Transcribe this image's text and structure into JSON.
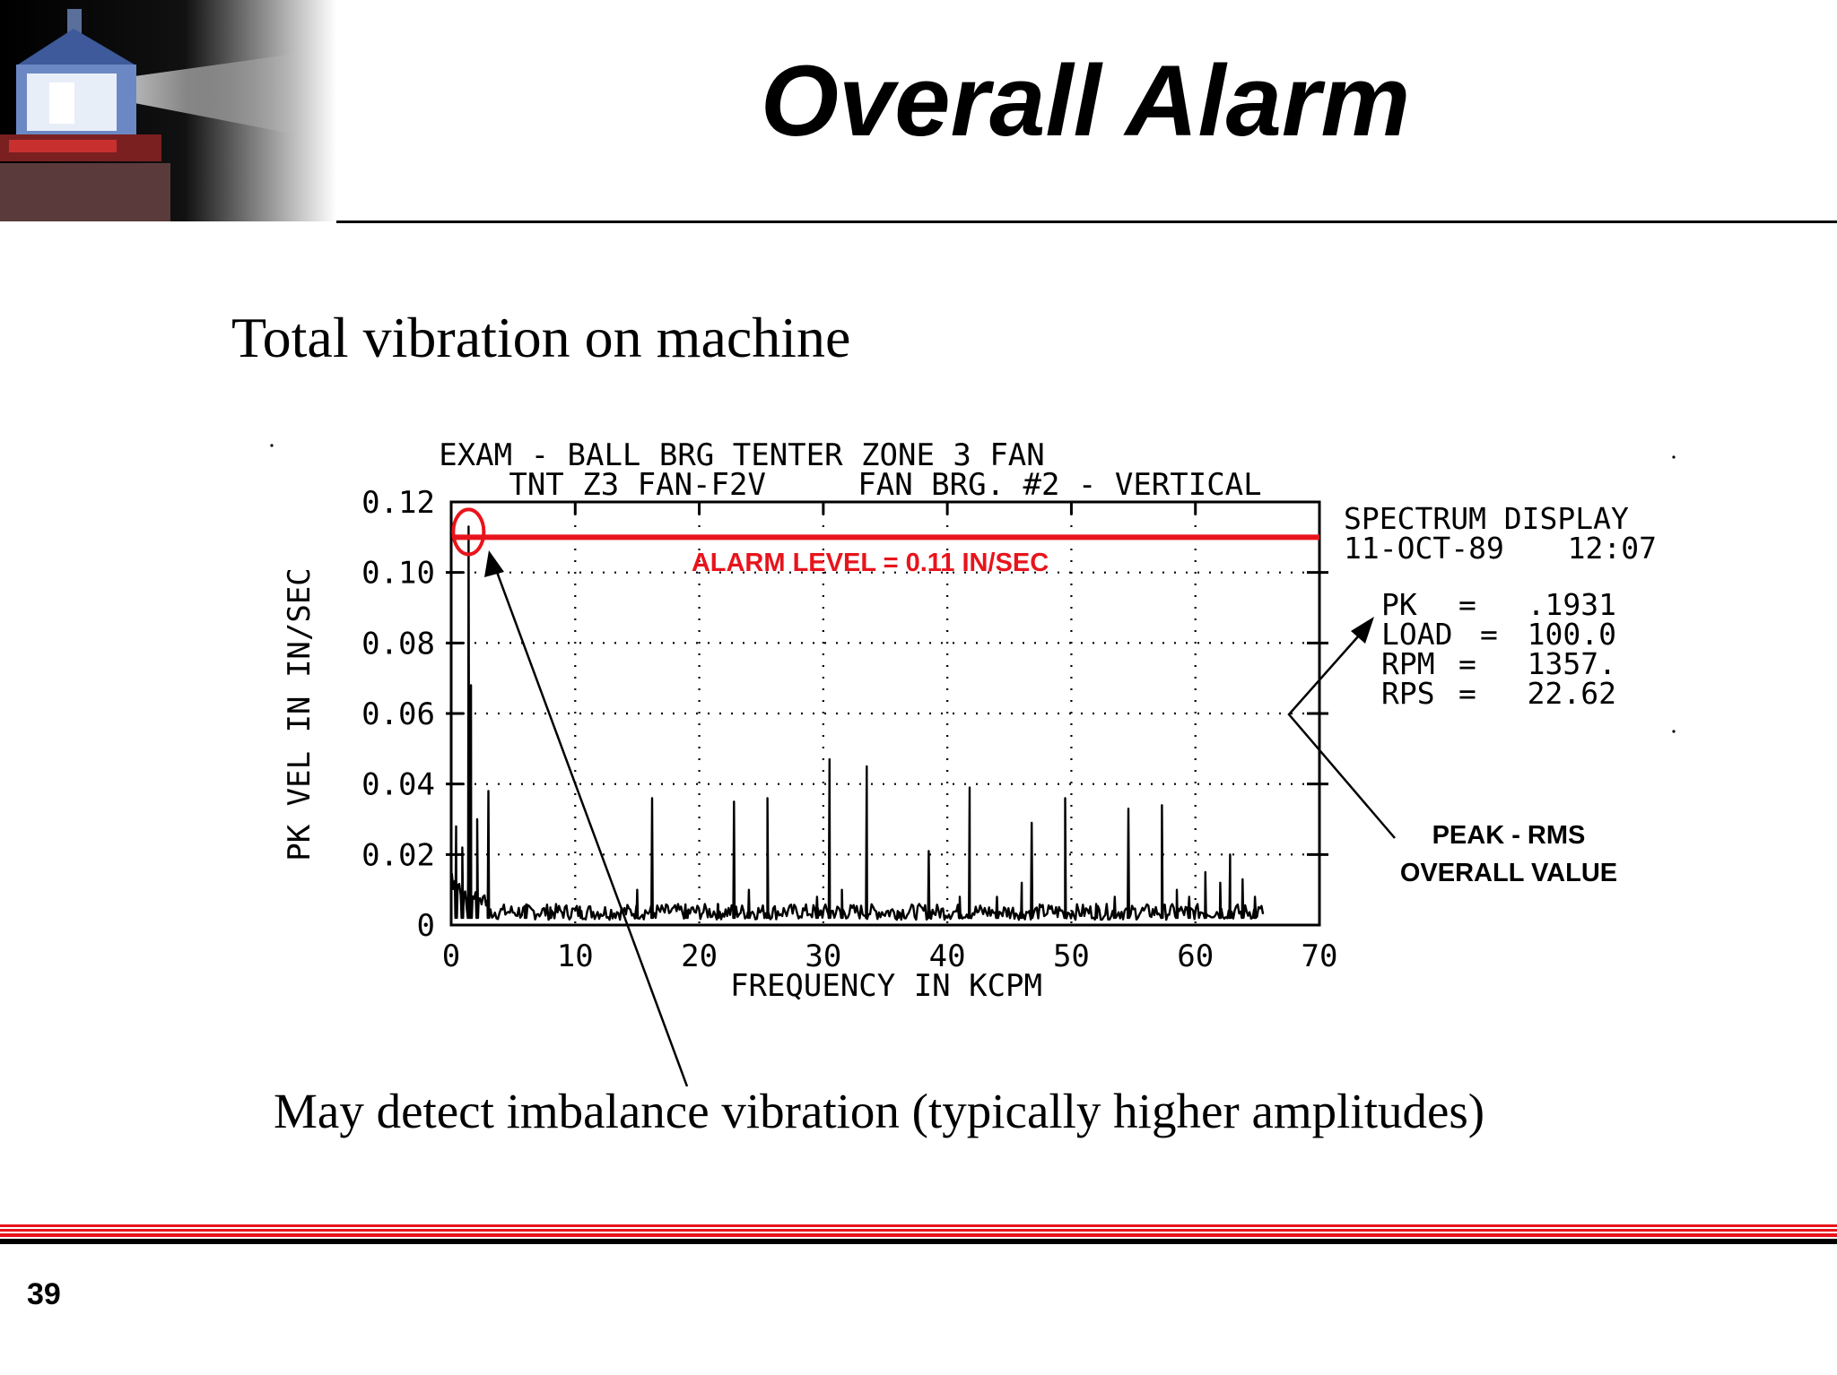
{
  "slide": {
    "title": "Overall Alarm",
    "subtitle": "Total vibration on machine",
    "caption": "May detect imbalance vibration (typically higher amplitudes)",
    "page_number": "39"
  },
  "callouts": {
    "peak_rms_line1": "PEAK - RMS",
    "peak_rms_line2": "OVERALL VALUE"
  },
  "colors": {
    "alarm": "#e8141c",
    "text": "#000000",
    "footer_red": "#e8141c"
  },
  "chart_data": {
    "type": "line",
    "title": "EXAM - BALL BRG TENTER ZONE 3 FAN",
    "subtitle": "TNT Z3 FAN-F2V     FAN BRG. #2 - VERTICAL",
    "xlabel": "FREQUENCY IN KCPM",
    "ylabel": "PK VEL IN IN/SEC",
    "xlim": [
      0,
      70
    ],
    "ylim": [
      0,
      0.12
    ],
    "x_ticks": [
      "0",
      "10",
      "20",
      "30",
      "40",
      "50",
      "60",
      "70"
    ],
    "y_ticks": [
      "0",
      "0.02",
      "0.04",
      "0.06",
      "0.08",
      "0.10",
      "0.12"
    ],
    "x_tick_values": [
      0,
      10,
      20,
      30,
      40,
      50,
      60,
      70
    ],
    "y_tick_values": [
      0,
      0.02,
      0.04,
      0.06,
      0.08,
      0.1,
      0.12
    ],
    "grid": true,
    "alarm_level": {
      "value": 0.11,
      "label": "ALARM LEVEL = 0.11 IN/SEC"
    },
    "info_panel": {
      "header1": "SPECTRUM DISPLAY",
      "date": "11-OCT-89",
      "time": "12:07",
      "rows": [
        {
          "name": "PK",
          "value": ".1931"
        },
        {
          "name": "LOAD",
          "value": "100.0"
        },
        {
          "name": "RPM",
          "value": "1357."
        },
        {
          "name": "RPS",
          "value": "22.62"
        }
      ]
    },
    "peaks": [
      {
        "x": 0.4,
        "y": 0.028
      },
      {
        "x": 0.9,
        "y": 0.022
      },
      {
        "x": 1.4,
        "y": 0.113
      },
      {
        "x": 1.6,
        "y": 0.068
      },
      {
        "x": 2.1,
        "y": 0.03
      },
      {
        "x": 3.0,
        "y": 0.038
      },
      {
        "x": 6.0,
        "y": 0.004
      },
      {
        "x": 8.0,
        "y": 0.005
      },
      {
        "x": 10.5,
        "y": 0.004
      },
      {
        "x": 15.0,
        "y": 0.01
      },
      {
        "x": 16.2,
        "y": 0.036
      },
      {
        "x": 19.0,
        "y": 0.004
      },
      {
        "x": 21.5,
        "y": 0.006
      },
      {
        "x": 22.8,
        "y": 0.035
      },
      {
        "x": 24.0,
        "y": 0.01
      },
      {
        "x": 25.5,
        "y": 0.036
      },
      {
        "x": 29.5,
        "y": 0.008
      },
      {
        "x": 30.5,
        "y": 0.047
      },
      {
        "x": 31.5,
        "y": 0.01
      },
      {
        "x": 33.5,
        "y": 0.045
      },
      {
        "x": 36.0,
        "y": 0.004
      },
      {
        "x": 38.5,
        "y": 0.021
      },
      {
        "x": 41.0,
        "y": 0.008
      },
      {
        "x": 41.8,
        "y": 0.039
      },
      {
        "x": 44.0,
        "y": 0.008
      },
      {
        "x": 46.0,
        "y": 0.012
      },
      {
        "x": 46.8,
        "y": 0.029
      },
      {
        "x": 49.5,
        "y": 0.036
      },
      {
        "x": 52.0,
        "y": 0.006
      },
      {
        "x": 53.5,
        "y": 0.008
      },
      {
        "x": 54.6,
        "y": 0.033
      },
      {
        "x": 57.3,
        "y": 0.034
      },
      {
        "x": 58.5,
        "y": 0.01
      },
      {
        "x": 59.5,
        "y": 0.008
      },
      {
        "x": 60.8,
        "y": 0.015
      },
      {
        "x": 62.0,
        "y": 0.012
      },
      {
        "x": 62.8,
        "y": 0.02
      },
      {
        "x": 63.8,
        "y": 0.013
      },
      {
        "x": 64.8,
        "y": 0.008
      }
    ]
  }
}
